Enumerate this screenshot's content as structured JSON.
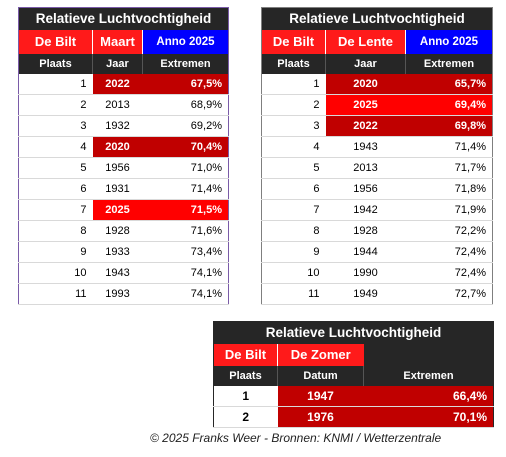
{
  "table1": {
    "title": "Relatieve Luchtvochtigheid",
    "sub": [
      "De Bilt",
      "Maart",
      "Anno 2025"
    ],
    "headers": [
      "Plaats",
      "Jaar",
      "Extremen"
    ],
    "rows": [
      {
        "plaats": "1",
        "jaar": "2022",
        "val": "67,5%",
        "hl": "dark"
      },
      {
        "plaats": "2",
        "jaar": "2013",
        "val": "68,9%",
        "hl": ""
      },
      {
        "plaats": "3",
        "jaar": "1932",
        "val": "69,2%",
        "hl": ""
      },
      {
        "plaats": "4",
        "jaar": "2020",
        "val": "70,4%",
        "hl": "dark"
      },
      {
        "plaats": "5",
        "jaar": "1956",
        "val": "71,0%",
        "hl": ""
      },
      {
        "plaats": "6",
        "jaar": "1931",
        "val": "71,4%",
        "hl": ""
      },
      {
        "plaats": "7",
        "jaar": "2025",
        "val": "71,5%",
        "hl": "bright"
      },
      {
        "plaats": "8",
        "jaar": "1928",
        "val": "71,6%",
        "hl": ""
      },
      {
        "plaats": "9",
        "jaar": "1933",
        "val": "73,4%",
        "hl": ""
      },
      {
        "plaats": "10",
        "jaar": "1943",
        "val": "74,1%",
        "hl": ""
      },
      {
        "plaats": "11",
        "jaar": "1993",
        "val": "74,1%",
        "hl": ""
      }
    ]
  },
  "table2": {
    "title": "Relatieve Luchtvochtigheid",
    "sub": [
      "De Bilt",
      "De Lente",
      "Anno 2025"
    ],
    "headers": [
      "Plaats",
      "Jaar",
      "Extremen"
    ],
    "rows": [
      {
        "plaats": "1",
        "jaar": "2020",
        "val": "65,7%",
        "hl": "dark"
      },
      {
        "plaats": "2",
        "jaar": "2025",
        "val": "69,4%",
        "hl": "bright"
      },
      {
        "plaats": "3",
        "jaar": "2022",
        "val": "69,8%",
        "hl": "dark"
      },
      {
        "plaats": "4",
        "jaar": "1943",
        "val": "71,4%",
        "hl": ""
      },
      {
        "plaats": "5",
        "jaar": "2013",
        "val": "71,7%",
        "hl": ""
      },
      {
        "plaats": "6",
        "jaar": "1956",
        "val": "71,8%",
        "hl": ""
      },
      {
        "plaats": "7",
        "jaar": "1942",
        "val": "71,9%",
        "hl": ""
      },
      {
        "plaats": "8",
        "jaar": "1928",
        "val": "72,2%",
        "hl": ""
      },
      {
        "plaats": "9",
        "jaar": "1944",
        "val": "72,4%",
        "hl": ""
      },
      {
        "plaats": "10",
        "jaar": "1990",
        "val": "72,4%",
        "hl": ""
      },
      {
        "plaats": "11",
        "jaar": "1949",
        "val": "72,7%",
        "hl": ""
      }
    ]
  },
  "table3": {
    "title": "Relatieve Luchtvochtigheid",
    "sub": [
      "De Bilt",
      "De Zomer"
    ],
    "headers": [
      "Plaats",
      "Datum",
      "Extremen"
    ],
    "rows": [
      {
        "plaats": "1",
        "jaar": "1947",
        "val": "66,4%"
      },
      {
        "plaats": "2",
        "jaar": "1976",
        "val": "70,1%"
      }
    ]
  },
  "footer": "© 2025 Franks Weer  - Bronnen: KNMI / Wetterzentrale",
  "colors": {
    "dark_red": "#c00000",
    "bright_red": "#ff0000",
    "blue": "#0000ff",
    "header_bg": "#262626"
  }
}
